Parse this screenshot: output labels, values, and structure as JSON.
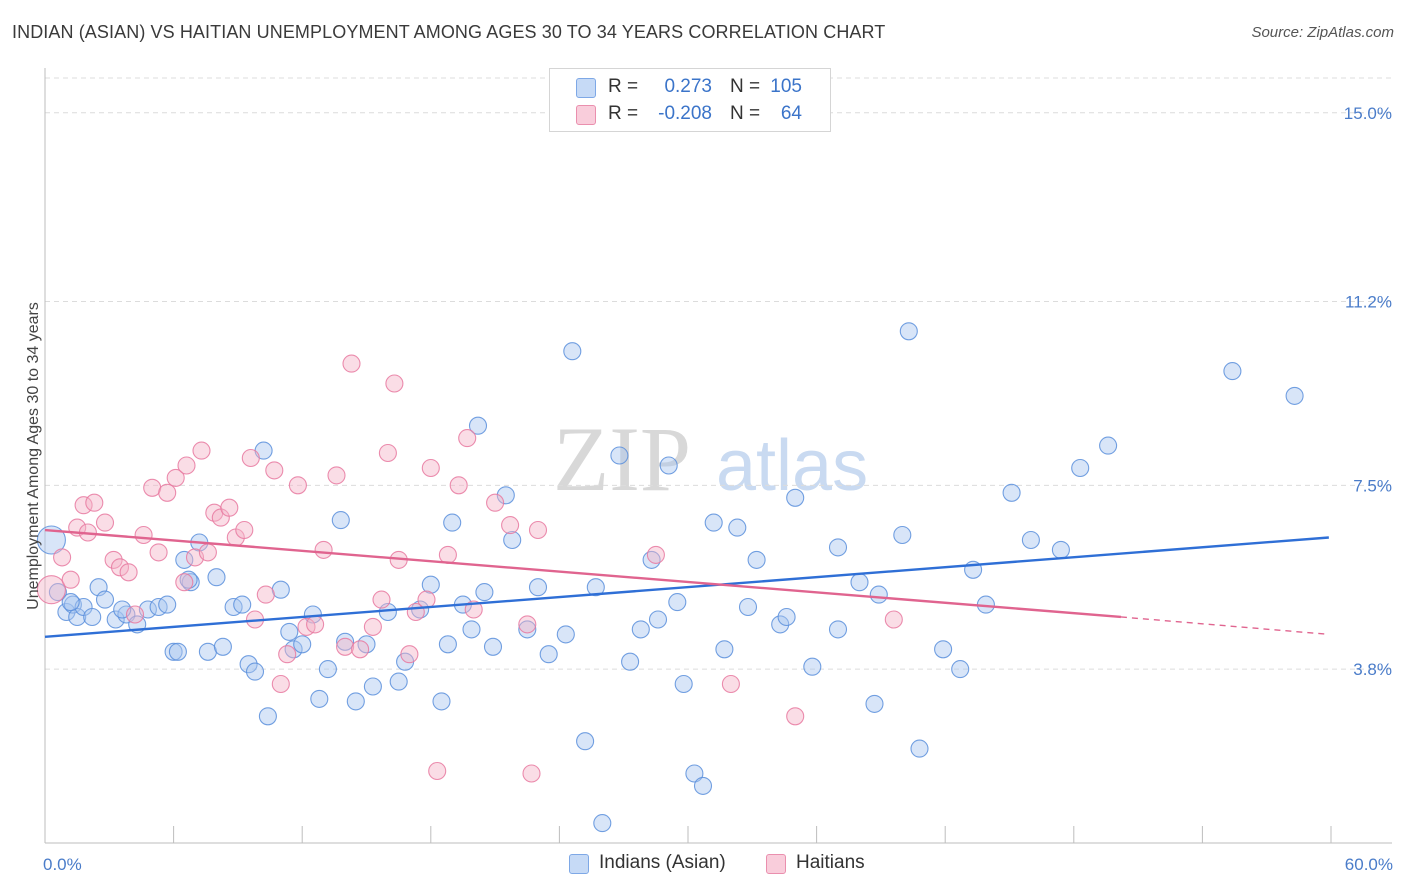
{
  "title": "INDIAN (ASIAN) VS HAITIAN UNEMPLOYMENT AMONG AGES 30 TO 34 YEARS CORRELATION CHART",
  "source": "Source: ZipAtlas.com",
  "watermark": {
    "zip": "ZIP",
    "atlas": "atlas"
  },
  "legend": {
    "rows": [
      {
        "r_label": "R =",
        "r_value": "0.273",
        "n_label": "N =",
        "n_value": "105",
        "color": "#a9c6f0"
      },
      {
        "r_label": "R =",
        "r_value": "-0.208",
        "n_label": "N =",
        "n_value": "64",
        "color": "#f4b3c7"
      }
    ]
  },
  "bottom_legend": [
    {
      "label": "Indians (Asian)",
      "color": "#a9c6f0"
    },
    {
      "label": "Haitians",
      "color": "#f4b3c7"
    }
  ],
  "chart_data": {
    "type": "scatter",
    "xlabel": "",
    "ylabel": "Unemployment Among Ages 30 to 34 years",
    "xlim": [
      0,
      60
    ],
    "ylim": [
      0.3,
      15.7
    ],
    "x_tick_labels": [
      "0.0%",
      "60.0%"
    ],
    "y_ticks": [
      3.8,
      7.5,
      11.2,
      15.0
    ],
    "y_tick_labels": [
      "3.8%",
      "7.5%",
      "11.2%",
      "15.0%"
    ],
    "grid": true,
    "colors": {
      "blue": "#5b8fdc",
      "pink": "#e879a0",
      "blue_fill": "#a9c6f0",
      "pink_fill": "#f4b3c7"
    },
    "series": [
      {
        "name": "Indians (Asian)",
        "trend": {
          "x": [
            0,
            59.9
          ],
          "y": [
            4.45,
            6.45
          ]
        },
        "points": [
          [
            0.3,
            6.4
          ],
          [
            0.6,
            5.35
          ],
          [
            1.0,
            4.95
          ],
          [
            1.3,
            5.1
          ],
          [
            1.5,
            4.85
          ],
          [
            1.8,
            5.05
          ],
          [
            2.2,
            4.85
          ],
          [
            2.5,
            5.45
          ],
          [
            2.8,
            5.2
          ],
          [
            3.3,
            4.8
          ],
          [
            3.8,
            4.9
          ],
          [
            4.3,
            4.7
          ],
          [
            4.8,
            5.0
          ],
          [
            5.3,
            5.05
          ],
          [
            5.7,
            5.1
          ],
          [
            6.0,
            4.15
          ],
          [
            6.2,
            4.15
          ],
          [
            6.5,
            6.0
          ],
          [
            6.8,
            5.55
          ],
          [
            7.2,
            6.35
          ],
          [
            7.6,
            4.15
          ],
          [
            8.0,
            5.65
          ],
          [
            8.3,
            4.25
          ],
          [
            8.8,
            5.05
          ],
          [
            9.2,
            5.1
          ],
          [
            9.5,
            3.9
          ],
          [
            9.8,
            3.75
          ],
          [
            10.2,
            8.2
          ],
          [
            10.4,
            2.85
          ],
          [
            11.0,
            5.4
          ],
          [
            11.4,
            4.55
          ],
          [
            11.6,
            4.2
          ],
          [
            12.0,
            4.3
          ],
          [
            12.5,
            4.9
          ],
          [
            12.8,
            3.2
          ],
          [
            13.2,
            3.8
          ],
          [
            13.8,
            6.8
          ],
          [
            14.0,
            4.35
          ],
          [
            14.5,
            3.15
          ],
          [
            15.0,
            4.3
          ],
          [
            15.3,
            3.45
          ],
          [
            16.0,
            4.95
          ],
          [
            16.5,
            3.55
          ],
          [
            16.8,
            3.95
          ],
          [
            17.5,
            5.0
          ],
          [
            18.0,
            5.5
          ],
          [
            18.5,
            3.15
          ],
          [
            18.8,
            4.3
          ],
          [
            19.0,
            6.75
          ],
          [
            19.5,
            5.1
          ],
          [
            19.9,
            4.6
          ],
          [
            20.2,
            8.7
          ],
          [
            20.5,
            5.35
          ],
          [
            20.9,
            4.25
          ],
          [
            21.5,
            7.3
          ],
          [
            21.8,
            6.4
          ],
          [
            22.5,
            4.6
          ],
          [
            23.0,
            5.45
          ],
          [
            23.5,
            4.1
          ],
          [
            24.3,
            4.5
          ],
          [
            24.6,
            10.2
          ],
          [
            25.2,
            2.35
          ],
          [
            25.7,
            5.45
          ],
          [
            26.0,
            0.7
          ],
          [
            26.8,
            8.1
          ],
          [
            27.3,
            3.95
          ],
          [
            27.8,
            4.6
          ],
          [
            28.3,
            6.0
          ],
          [
            28.6,
            4.8
          ],
          [
            29.1,
            7.9
          ],
          [
            29.5,
            5.15
          ],
          [
            29.8,
            3.5
          ],
          [
            30.3,
            1.7
          ],
          [
            30.7,
            1.45
          ],
          [
            31.2,
            6.75
          ],
          [
            31.7,
            4.2
          ],
          [
            32.3,
            6.65
          ],
          [
            32.8,
            5.05
          ],
          [
            33.2,
            6.0
          ],
          [
            34.3,
            4.7
          ],
          [
            34.6,
            4.85
          ],
          [
            35.0,
            7.25
          ],
          [
            35.8,
            3.85
          ],
          [
            37.0,
            6.25
          ],
          [
            37.0,
            4.6
          ],
          [
            38.0,
            5.55
          ],
          [
            38.9,
            5.3
          ],
          [
            38.7,
            3.1
          ],
          [
            40.0,
            6.5
          ],
          [
            40.3,
            10.6
          ],
          [
            40.8,
            2.2
          ],
          [
            41.9,
            4.2
          ],
          [
            42.7,
            3.8
          ],
          [
            43.3,
            5.8
          ],
          [
            43.9,
            5.1
          ],
          [
            45.1,
            7.35
          ],
          [
            46.0,
            6.4
          ],
          [
            47.4,
            6.2
          ],
          [
            48.3,
            7.85
          ],
          [
            49.6,
            8.3
          ],
          [
            55.4,
            9.8
          ],
          [
            58.3,
            9.3
          ],
          [
            1.2,
            5.15
          ],
          [
            3.6,
            5.0
          ],
          [
            6.7,
            5.6
          ]
        ]
      },
      {
        "name": "Haitians",
        "trend": {
          "x": [
            0,
            50.2
          ],
          "y": [
            6.6,
            4.85
          ]
        },
        "trend_dashed": {
          "x": [
            50.2,
            59.9
          ],
          "y": [
            4.85,
            4.5
          ]
        },
        "points": [
          [
            0.3,
            5.4
          ],
          [
            0.8,
            6.05
          ],
          [
            1.2,
            5.6
          ],
          [
            1.5,
            6.65
          ],
          [
            1.8,
            7.1
          ],
          [
            2.0,
            6.55
          ],
          [
            2.3,
            7.15
          ],
          [
            2.8,
            6.75
          ],
          [
            3.2,
            6.0
          ],
          [
            3.5,
            5.85
          ],
          [
            3.9,
            5.75
          ],
          [
            4.2,
            4.9
          ],
          [
            4.6,
            6.5
          ],
          [
            5.0,
            7.45
          ],
          [
            5.3,
            6.15
          ],
          [
            5.7,
            7.35
          ],
          [
            6.1,
            7.65
          ],
          [
            6.5,
            5.55
          ],
          [
            6.6,
            7.9
          ],
          [
            7.0,
            6.05
          ],
          [
            7.3,
            8.2
          ],
          [
            7.6,
            6.15
          ],
          [
            7.9,
            6.95
          ],
          [
            8.2,
            6.85
          ],
          [
            8.6,
            7.05
          ],
          [
            8.9,
            6.45
          ],
          [
            9.3,
            6.6
          ],
          [
            9.6,
            8.05
          ],
          [
            9.8,
            4.8
          ],
          [
            10.3,
            5.3
          ],
          [
            10.7,
            7.8
          ],
          [
            11.0,
            3.5
          ],
          [
            11.3,
            4.1
          ],
          [
            11.8,
            7.5
          ],
          [
            12.2,
            4.65
          ],
          [
            12.6,
            4.7
          ],
          [
            13.0,
            6.2
          ],
          [
            13.6,
            7.7
          ],
          [
            14.0,
            4.25
          ],
          [
            14.3,
            9.95
          ],
          [
            14.7,
            4.2
          ],
          [
            15.3,
            4.65
          ],
          [
            15.7,
            5.2
          ],
          [
            16.0,
            8.15
          ],
          [
            16.3,
            9.55
          ],
          [
            16.5,
            6.0
          ],
          [
            17.0,
            4.1
          ],
          [
            17.3,
            4.95
          ],
          [
            17.8,
            5.2
          ],
          [
            18.0,
            7.85
          ],
          [
            18.3,
            1.75
          ],
          [
            18.8,
            6.1
          ],
          [
            19.3,
            7.5
          ],
          [
            19.7,
            8.45
          ],
          [
            20.0,
            5.0
          ],
          [
            21.0,
            7.15
          ],
          [
            21.7,
            6.7
          ],
          [
            22.5,
            4.7
          ],
          [
            23.0,
            6.6
          ],
          [
            22.7,
            1.7
          ],
          [
            28.5,
            6.1
          ],
          [
            32.0,
            3.5
          ],
          [
            35.0,
            2.85
          ],
          [
            39.6,
            4.8
          ]
        ]
      }
    ]
  }
}
